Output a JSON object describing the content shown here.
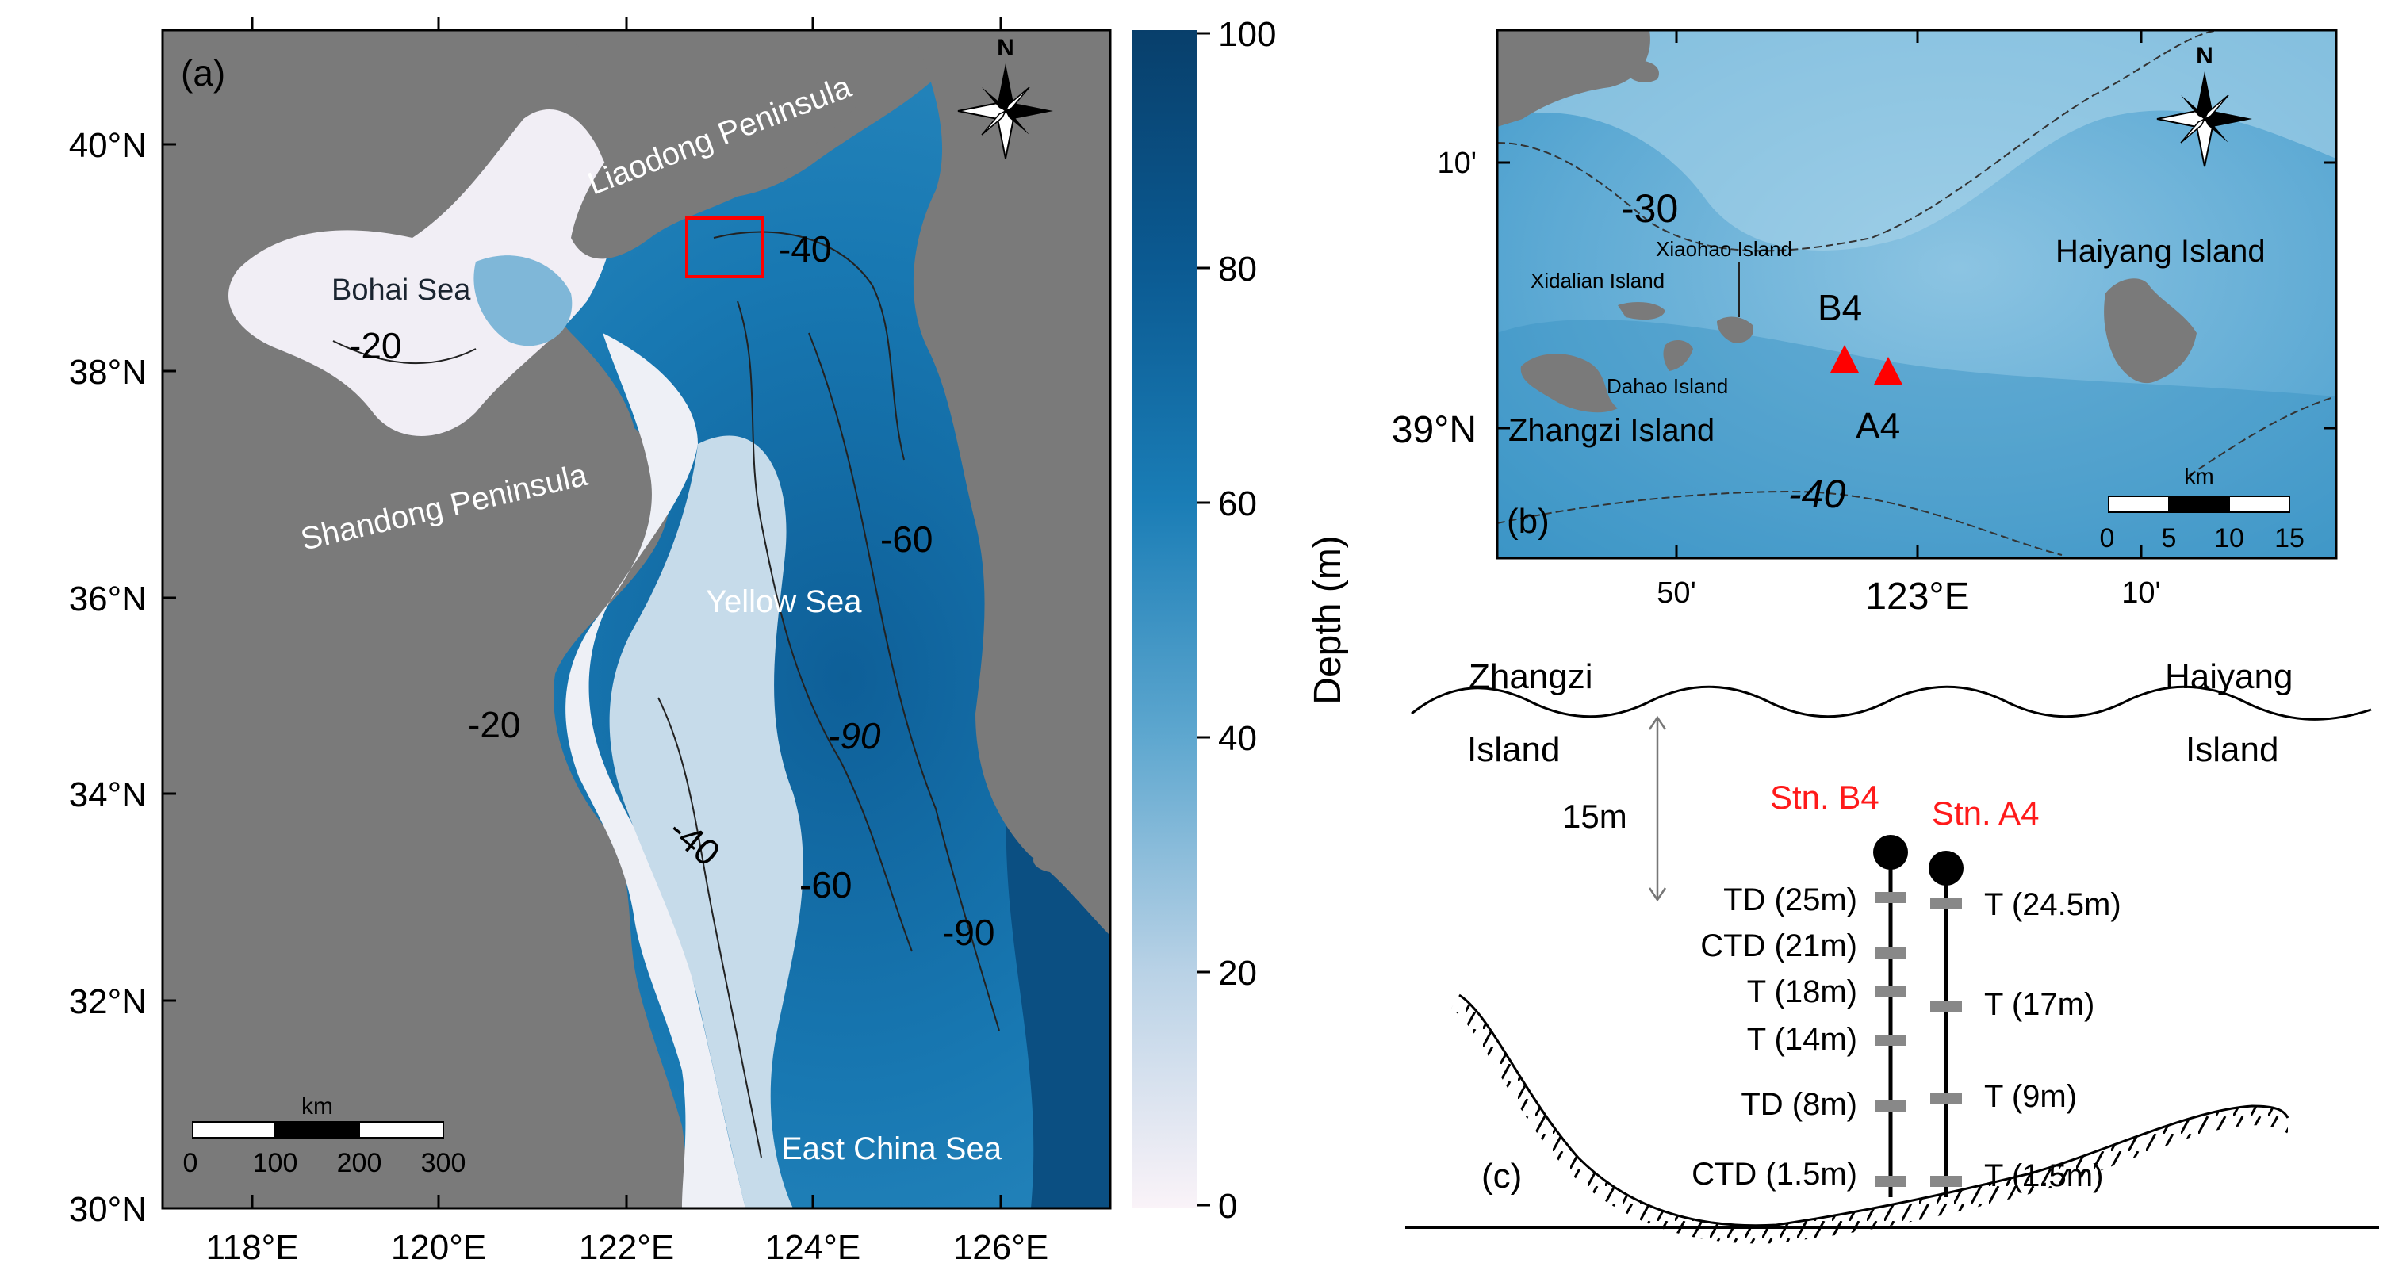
{
  "colors": {
    "land": "#7a7a7a",
    "deep": "#0a4a78",
    "mid": "#1778b0",
    "shallow": "#6aaed0",
    "shelf": "#c8dcea",
    "shore": "#f3eef6",
    "marker": "#ff0000",
    "station_label": "#ff1a1a",
    "sensor": "#888888"
  },
  "panel_a": {
    "label": "(a)",
    "north_label": "N",
    "lat_ticks": [
      "40°N",
      "38°N",
      "36°N",
      "34°N",
      "32°N",
      "30°N"
    ],
    "lon_ticks": [
      "118°E",
      "120°E",
      "122°E",
      "124°E",
      "126°E"
    ],
    "regions": {
      "liaodong": "Liaodong Peninsula",
      "bohai": "Bohai Sea",
      "shandong": "Shandong Peninsula",
      "yellow": "Yellow Sea",
      "ecs": "East China Sea"
    },
    "contours": [
      "-40",
      "-20",
      "-60",
      "-20",
      "-90",
      "-40",
      "-60",
      "-90"
    ],
    "scale": {
      "unit": "km",
      "ticks": [
        "0",
        "100",
        "200",
        "300"
      ]
    },
    "colorbar": {
      "label": "Depth (m)",
      "ticks": [
        "100",
        "80",
        "60",
        "40",
        "20",
        "0"
      ]
    }
  },
  "panel_b": {
    "label": "(b)",
    "north_label": "N",
    "lat_ticks": [
      "10'",
      "39°N"
    ],
    "lon_ticks": [
      "50'",
      "123°E",
      "10'"
    ],
    "islands": {
      "xiaohao": "Xiaohao Island",
      "xidalian": "Xidalian Island",
      "dahao": "Dahao Island",
      "zhangzi": "Zhangzi Island",
      "haiyang": "Haiyang Island"
    },
    "contours": [
      "-30",
      "-40"
    ],
    "stations": [
      "B4",
      "A4"
    ],
    "scale": {
      "unit": "km",
      "ticks": [
        "0",
        "5",
        "10",
        "15"
      ]
    }
  },
  "panel_c": {
    "label": "(c)",
    "left_place_1": "Zhangzi",
    "left_place_2": "Island",
    "right_place_1": "Haiyang",
    "right_place_2": "Island",
    "depth_label": "15m",
    "station_b": "Stn. B4",
    "station_a": "Stn. A4",
    "b4_sensors": [
      "TD (25m)",
      "CTD (21m)",
      "T (18m)",
      "T (14m)",
      "TD (8m)",
      "CTD (1.5m)"
    ],
    "a4_sensors": [
      "T (24.5m)",
      "T (17m)",
      "T (9m)",
      "T (1.5m)"
    ]
  }
}
